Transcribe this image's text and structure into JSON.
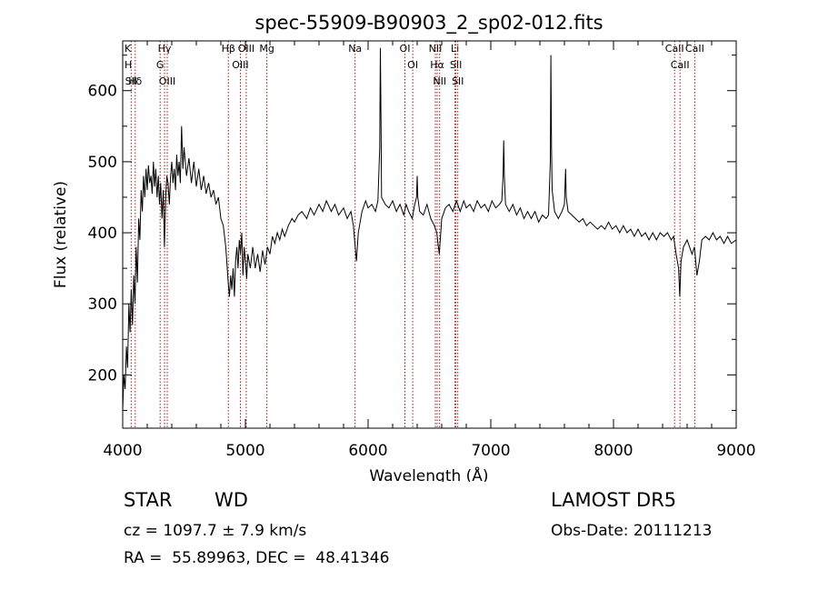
{
  "info": {
    "class_label": "STAR",
    "subclass_label": "WD",
    "survey": "LAMOST DR5",
    "cz": "cz = 1097.7 ± 7.9 km/s",
    "obs_date": "Obs-Date: 20111213",
    "radec": "RA =  55.89963, DEC =  48.41346"
  },
  "colors": {
    "line": "#000000",
    "marker": "#9b1b1b",
    "text": "#000000",
    "background": "#ffffff"
  },
  "chart_data": {
    "type": "line",
    "title": "spec-55909-B90903_2_sp02-012.fits",
    "xlabel": "Wavelength (Å)",
    "ylabel": "Flux (relative)",
    "xlim": [
      4000,
      9000
    ],
    "ylim": [
      125,
      670
    ],
    "xticks": [
      4000,
      5000,
      6000,
      7000,
      8000,
      9000
    ],
    "yticks": [
      200,
      300,
      400,
      500,
      600
    ],
    "grid": false,
    "series": [
      {
        "points": [
          [
            4000,
            150
          ],
          [
            4010,
            200
          ],
          [
            4020,
            180
          ],
          [
            4030,
            240
          ],
          [
            4040,
            210
          ],
          [
            4050,
            300
          ],
          [
            4060,
            260
          ],
          [
            4070,
            320
          ],
          [
            4080,
            270
          ],
          [
            4090,
            340
          ],
          [
            4100,
            300
          ],
          [
            4110,
            380
          ],
          [
            4120,
            330
          ],
          [
            4130,
            420
          ],
          [
            4140,
            390
          ],
          [
            4150,
            460
          ],
          [
            4160,
            430
          ],
          [
            4170,
            480
          ],
          [
            4180,
            450
          ],
          [
            4190,
            490
          ],
          [
            4200,
            460
          ],
          [
            4210,
            495
          ],
          [
            4220,
            470
          ],
          [
            4230,
            480
          ],
          [
            4240,
            455
          ],
          [
            4250,
            500
          ],
          [
            4260,
            465
          ],
          [
            4270,
            490
          ],
          [
            4280,
            450
          ],
          [
            4290,
            480
          ],
          [
            4300,
            440
          ],
          [
            4310,
            470
          ],
          [
            4320,
            420
          ],
          [
            4330,
            460
          ],
          [
            4340,
            380
          ],
          [
            4350,
            450
          ],
          [
            4360,
            480
          ],
          [
            4370,
            470
          ],
          [
            4380,
            440
          ],
          [
            4390,
            480
          ],
          [
            4400,
            500
          ],
          [
            4410,
            470
          ],
          [
            4420,
            490
          ],
          [
            4430,
            460
          ],
          [
            4440,
            510
          ],
          [
            4450,
            480
          ],
          [
            4460,
            500
          ],
          [
            4470,
            470
          ],
          [
            4480,
            550
          ],
          [
            4490,
            490
          ],
          [
            4500,
            520
          ],
          [
            4520,
            480
          ],
          [
            4540,
            505
          ],
          [
            4560,
            470
          ],
          [
            4580,
            500
          ],
          [
            4600,
            465
          ],
          [
            4620,
            490
          ],
          [
            4640,
            460
          ],
          [
            4660,
            480
          ],
          [
            4680,
            455
          ],
          [
            4700,
            470
          ],
          [
            4720,
            450
          ],
          [
            4740,
            460
          ],
          [
            4760,
            440
          ],
          [
            4780,
            450
          ],
          [
            4800,
            420
          ],
          [
            4820,
            410
          ],
          [
            4840,
            380
          ],
          [
            4860,
            330
          ],
          [
            4870,
            310
          ],
          [
            4880,
            340
          ],
          [
            4890,
            320
          ],
          [
            4900,
            350
          ],
          [
            4910,
            310
          ],
          [
            4920,
            360
          ],
          [
            4930,
            380
          ],
          [
            4940,
            350
          ],
          [
            4950,
            390
          ],
          [
            4960,
            370
          ],
          [
            4970,
            400
          ],
          [
            4980,
            340
          ],
          [
            4990,
            380
          ],
          [
            5000,
            360
          ],
          [
            5010,
            335
          ],
          [
            5020,
            370
          ],
          [
            5040,
            350
          ],
          [
            5060,
            380
          ],
          [
            5080,
            350
          ],
          [
            5100,
            370
          ],
          [
            5120,
            345
          ],
          [
            5140,
            375
          ],
          [
            5160,
            355
          ],
          [
            5180,
            380
          ],
          [
            5200,
            370
          ],
          [
            5220,
            395
          ],
          [
            5240,
            385
          ],
          [
            5260,
            400
          ],
          [
            5280,
            390
          ],
          [
            5300,
            405
          ],
          [
            5320,
            395
          ],
          [
            5350,
            410
          ],
          [
            5380,
            420
          ],
          [
            5400,
            415
          ],
          [
            5430,
            425
          ],
          [
            5460,
            430
          ],
          [
            5500,
            420
          ],
          [
            5530,
            435
          ],
          [
            5560,
            425
          ],
          [
            5600,
            440
          ],
          [
            5630,
            430
          ],
          [
            5660,
            445
          ],
          [
            5700,
            430
          ],
          [
            5730,
            440
          ],
          [
            5760,
            425
          ],
          [
            5800,
            435
          ],
          [
            5830,
            420
          ],
          [
            5860,
            430
          ],
          [
            5880,
            410
          ],
          [
            5895,
            380
          ],
          [
            5905,
            360
          ],
          [
            5920,
            400
          ],
          [
            5950,
            430
          ],
          [
            5980,
            445
          ],
          [
            6000,
            435
          ],
          [
            6030,
            440
          ],
          [
            6060,
            430
          ],
          [
            6080,
            445
          ],
          [
            6095,
            520
          ],
          [
            6100,
            660
          ],
          [
            6105,
            560
          ],
          [
            6110,
            450
          ],
          [
            6140,
            440
          ],
          [
            6170,
            435
          ],
          [
            6200,
            445
          ],
          [
            6230,
            430
          ],
          [
            6260,
            440
          ],
          [
            6290,
            425
          ],
          [
            6310,
            440
          ],
          [
            6330,
            430
          ],
          [
            6360,
            420
          ],
          [
            6380,
            440
          ],
          [
            6395,
            450
          ],
          [
            6400,
            480
          ],
          [
            6405,
            450
          ],
          [
            6420,
            430
          ],
          [
            6450,
            425
          ],
          [
            6480,
            440
          ],
          [
            6510,
            420
          ],
          [
            6540,
            410
          ],
          [
            6560,
            400
          ],
          [
            6570,
            385
          ],
          [
            6580,
            370
          ],
          [
            6590,
            395
          ],
          [
            6600,
            420
          ],
          [
            6630,
            435
          ],
          [
            6660,
            440
          ],
          [
            6690,
            430
          ],
          [
            6720,
            445
          ],
          [
            6750,
            430
          ],
          [
            6780,
            445
          ],
          [
            6800,
            435
          ],
          [
            6830,
            440
          ],
          [
            6860,
            430
          ],
          [
            6890,
            445
          ],
          [
            6920,
            435
          ],
          [
            6950,
            440
          ],
          [
            6980,
            430
          ],
          [
            7010,
            445
          ],
          [
            7040,
            435
          ],
          [
            7070,
            440
          ],
          [
            7090,
            445
          ],
          [
            7100,
            480
          ],
          [
            7105,
            530
          ],
          [
            7110,
            480
          ],
          [
            7120,
            440
          ],
          [
            7150,
            430
          ],
          [
            7180,
            440
          ],
          [
            7210,
            425
          ],
          [
            7240,
            435
          ],
          [
            7270,
            420
          ],
          [
            7300,
            430
          ],
          [
            7330,
            420
          ],
          [
            7360,
            430
          ],
          [
            7390,
            415
          ],
          [
            7420,
            425
          ],
          [
            7450,
            420
          ],
          [
            7470,
            425
          ],
          [
            7485,
            500
          ],
          [
            7490,
            650
          ],
          [
            7495,
            520
          ],
          [
            7500,
            460
          ],
          [
            7520,
            430
          ],
          [
            7550,
            420
          ],
          [
            7580,
            430
          ],
          [
            7600,
            440
          ],
          [
            7610,
            490
          ],
          [
            7615,
            450
          ],
          [
            7630,
            430
          ],
          [
            7660,
            425
          ],
          [
            7690,
            420
          ],
          [
            7720,
            415
          ],
          [
            7750,
            420
          ],
          [
            7780,
            410
          ],
          [
            7810,
            415
          ],
          [
            7840,
            410
          ],
          [
            7870,
            405
          ],
          [
            7900,
            410
          ],
          [
            7930,
            405
          ],
          [
            7960,
            415
          ],
          [
            7990,
            405
          ],
          [
            8020,
            410
          ],
          [
            8050,
            400
          ],
          [
            8080,
            410
          ],
          [
            8110,
            400
          ],
          [
            8140,
            405
          ],
          [
            8170,
            395
          ],
          [
            8200,
            405
          ],
          [
            8230,
            395
          ],
          [
            8260,
            400
          ],
          [
            8290,
            390
          ],
          [
            8320,
            400
          ],
          [
            8350,
            390
          ],
          [
            8380,
            400
          ],
          [
            8410,
            395
          ],
          [
            8440,
            400
          ],
          [
            8470,
            390
          ],
          [
            8490,
            395
          ],
          [
            8510,
            370
          ],
          [
            8530,
            350
          ],
          [
            8540,
            310
          ],
          [
            8550,
            360
          ],
          [
            8570,
            380
          ],
          [
            8600,
            390
          ],
          [
            8620,
            380
          ],
          [
            8640,
            370
          ],
          [
            8660,
            380
          ],
          [
            8680,
            340
          ],
          [
            8700,
            360
          ],
          [
            8720,
            390
          ],
          [
            8750,
            395
          ],
          [
            8780,
            390
          ],
          [
            8810,
            400
          ],
          [
            8840,
            390
          ],
          [
            8870,
            395
          ],
          [
            8900,
            385
          ],
          [
            8930,
            395
          ],
          [
            8960,
            385
          ],
          [
            9000,
            390
          ]
        ]
      }
    ],
    "line_markers": [
      {
        "label": "K",
        "wavelength": 3934
      },
      {
        "label": "H",
        "wavelength": 3969
      },
      {
        "label": "SII",
        "wavelength": 4069
      },
      {
        "label": "Hδ",
        "wavelength": 4102
      },
      {
        "label": "Hγ",
        "wavelength": 4341
      },
      {
        "label": "G",
        "wavelength": 4305
      },
      {
        "label": "OIII",
        "wavelength": 4363
      },
      {
        "label": "Hβ",
        "wavelength": 4861
      },
      {
        "label": "OIII",
        "wavelength": 4959
      },
      {
        "label": "OIII",
        "wavelength": 5007
      },
      {
        "label": "Mg",
        "wavelength": 5175
      },
      {
        "label": "Na",
        "wavelength": 5894
      },
      {
        "label": "OI",
        "wavelength": 6300
      },
      {
        "label": "OI",
        "wavelength": 6364
      },
      {
        "label": "NII",
        "wavelength": 6548
      },
      {
        "label": "Hα",
        "wavelength": 6563
      },
      {
        "label": "NII",
        "wavelength": 6583
      },
      {
        "label": "Li",
        "wavelength": 6708
      },
      {
        "label": "SII",
        "wavelength": 6716
      },
      {
        "label": "SII",
        "wavelength": 6731
      },
      {
        "label": "CaII",
        "wavelength": 8498
      },
      {
        "label": "CaII",
        "wavelength": 8542
      },
      {
        "label": "CaII",
        "wavelength": 8662
      }
    ]
  }
}
